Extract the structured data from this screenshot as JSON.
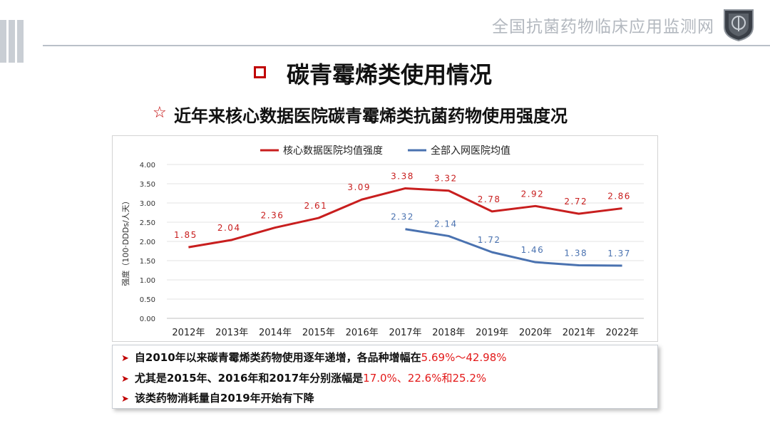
{
  "header": {
    "title": "全国抗菌药物临床应用监测网"
  },
  "page": {
    "title": "碳青霉烯类使用情况",
    "subtitle": "近年来核心数据医院碳青霉烯类抗菌药物使用强度况",
    "star": "☆"
  },
  "chart_data": {
    "type": "line",
    "x": [
      "2012年",
      "2013年",
      "2014年",
      "2015年",
      "2016年",
      "2017年",
      "2018年",
      "2019年",
      "2020年",
      "2021年",
      "2022年"
    ],
    "ylabel": "强度（100·DDDs/人天）",
    "ylim": [
      0,
      4
    ],
    "yticks": [
      "0.00",
      "0.50",
      "1.00",
      "1.50",
      "2.00",
      "2.50",
      "3.00",
      "3.50",
      "4.00"
    ],
    "grid": true,
    "legend_position": "top",
    "series": [
      {
        "name": "核心数据医院均值强度",
        "color": "#c81e1e",
        "values": [
          1.85,
          2.04,
          2.36,
          2.61,
          3.09,
          3.38,
          3.32,
          2.78,
          2.92,
          2.72,
          2.86
        ],
        "labels": [
          "1.85",
          "2.04",
          "2.36",
          "2.61",
          "3.09",
          "3.38",
          "3.32",
          "2.78",
          "2.92",
          "2.72",
          "2.86"
        ]
      },
      {
        "name": "全部入网医院均值",
        "color": "#4a72b0",
        "values": [
          null,
          null,
          null,
          null,
          null,
          2.32,
          2.14,
          1.72,
          1.46,
          1.38,
          1.37
        ],
        "labels": [
          null,
          null,
          null,
          null,
          null,
          "2.32",
          "2.14",
          "1.72",
          "1.46",
          "1.38",
          "1.37"
        ]
      }
    ]
  },
  "bullets": [
    {
      "text": "自2010年以来碳青霉烯类药物使用逐年递增，各品种增幅在",
      "highlight": "5.69%～42.98%"
    },
    {
      "text": "尤其是2015年、2016年和2017年分别涨幅是",
      "highlight": "17.0%、22.6%和25.2%"
    },
    {
      "text": "该类药物消耗量自2019年开始有下降",
      "highlight": ""
    }
  ],
  "colors": {
    "accent": "#c00000",
    "series_red": "#c81e1e",
    "series_blue": "#4a72b0"
  }
}
